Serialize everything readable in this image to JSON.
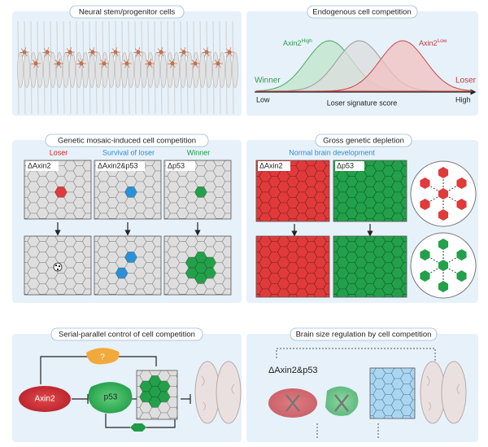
{
  "panel1": {
    "title": "Neural stem/progenitor cells"
  },
  "panel2": {
    "title": "Endogenous cell competition",
    "high_label": {
      "base": "Axin2",
      "sup": "High"
    },
    "low_label": {
      "base": "Axin2",
      "sup": "Low"
    },
    "winner": "Winner",
    "loser": "Loser",
    "axis_low": "Low",
    "axis_high": "High",
    "axis_title": "Loser signature score"
  },
  "panel3": {
    "title": "Genetic mosaic-induced cell competition",
    "columns": [
      {
        "heading": "Loser",
        "genotype": "ΔAxin2"
      },
      {
        "heading": "Survival of loser",
        "genotype": "ΔAxin2&p53"
      },
      {
        "heading": "Winner",
        "genotype": "Δp53"
      }
    ]
  },
  "panel4": {
    "title": "Gross genetic depletion",
    "subtitle": "Normal brain development",
    "genotypes": [
      "ΔAxin2",
      "Δp53"
    ]
  },
  "panel5": {
    "title": "Serial-parallel control of cell competition",
    "nodes": [
      "Axin2",
      "p53",
      "?"
    ]
  },
  "panel6": {
    "title": "Brain size regulation by cell competition",
    "genotype": "ΔAxin2&p53"
  }
}
